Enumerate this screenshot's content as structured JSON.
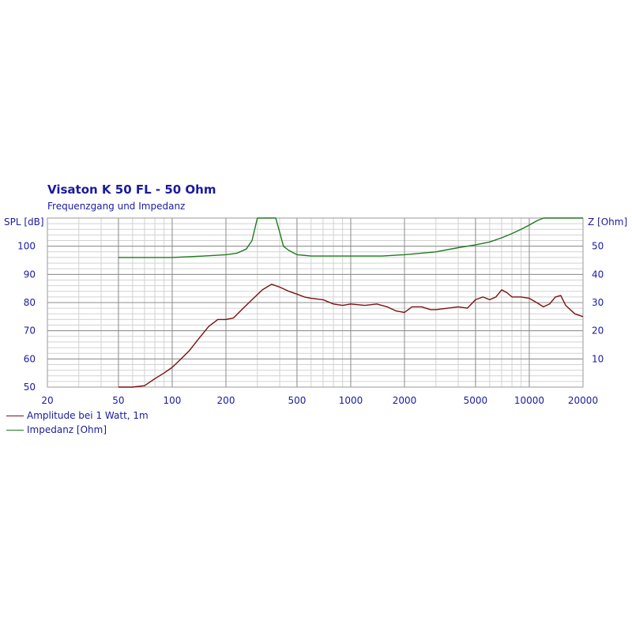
{
  "chart_data": {
    "type": "line",
    "title": "Visaton K 50 FL - 50 Ohm",
    "subtitle": "Frequenzgang und Impedanz",
    "x_scale": "log",
    "xlim": [
      20,
      20000
    ],
    "x_ticks": [
      20,
      50,
      100,
      200,
      500,
      1000,
      2000,
      5000,
      10000,
      20000
    ],
    "x_tick_labels": [
      "20",
      "50",
      "100",
      "200",
      "500",
      "1000",
      "2000",
      "5000",
      "10000",
      "20000"
    ],
    "y_left": {
      "label": "SPL [dB]",
      "ylim": [
        50,
        110
      ],
      "ticks": [
        50,
        60,
        70,
        80,
        90,
        100
      ],
      "tick_labels": [
        "50",
        "60",
        "70",
        "80",
        "90",
        "100"
      ]
    },
    "y_right": {
      "label": "Z [Ohm]",
      "ylim": [
        0,
        60
      ],
      "ticks": [
        10,
        20,
        30,
        40,
        50
      ],
      "tick_labels": [
        "10",
        "20",
        "30",
        "40",
        "50"
      ]
    },
    "grid": true,
    "legend_position": "bottom-left",
    "series": [
      {
        "name": "Amplitude bei 1 Watt, 1m",
        "axis": "left",
        "color": "#7a1010",
        "x": [
          50,
          60,
          70,
          80,
          90,
          100,
          110,
          125,
          140,
          160,
          180,
          200,
          220,
          250,
          280,
          320,
          360,
          400,
          450,
          500,
          550,
          600,
          700,
          800,
          900,
          1000,
          1200,
          1400,
          1600,
          1800,
          2000,
          2200,
          2500,
          2800,
          3000,
          3500,
          4000,
          4500,
          5000,
          5500,
          6000,
          6500,
          7000,
          7500,
          8000,
          9000,
          10000,
          11000,
          12000,
          13000,
          14000,
          15000,
          16000,
          18000,
          20000
        ],
        "y": [
          50,
          50,
          50.5,
          53,
          55,
          57,
          59.5,
          63,
          67,
          71.5,
          74,
          74,
          74.5,
          78,
          81,
          84.5,
          86.5,
          85.5,
          84,
          83,
          82,
          81.5,
          81,
          79.5,
          79,
          79.5,
          79,
          79.5,
          78.5,
          77,
          76.5,
          78.5,
          78.5,
          77.5,
          77.5,
          78,
          78.5,
          78,
          81,
          82,
          81,
          82,
          84.5,
          83.5,
          82,
          82,
          81.5,
          80,
          78.5,
          79.5,
          82,
          82.5,
          79,
          76,
          75
        ]
      },
      {
        "name": "Impedanz [Ohm]",
        "axis": "right",
        "color": "#1e7a1e",
        "x": [
          50,
          100,
          150,
          200,
          230,
          260,
          280,
          300,
          320,
          350,
          380,
          400,
          420,
          450,
          500,
          600,
          800,
          1000,
          1500,
          2000,
          3000,
          4000,
          5000,
          6000,
          7000,
          8000,
          9000,
          10000,
          11000,
          12000,
          13000,
          20000
        ],
        "y": [
          46,
          46,
          46.5,
          47,
          47.5,
          49,
          52,
          60,
          60,
          60,
          60,
          55,
          50,
          48.5,
          47,
          46.5,
          46.5,
          46.5,
          46.5,
          47,
          48,
          49.5,
          50.5,
          51.5,
          53,
          54.5,
          56,
          57.5,
          59,
          60,
          60,
          60
        ]
      }
    ]
  }
}
